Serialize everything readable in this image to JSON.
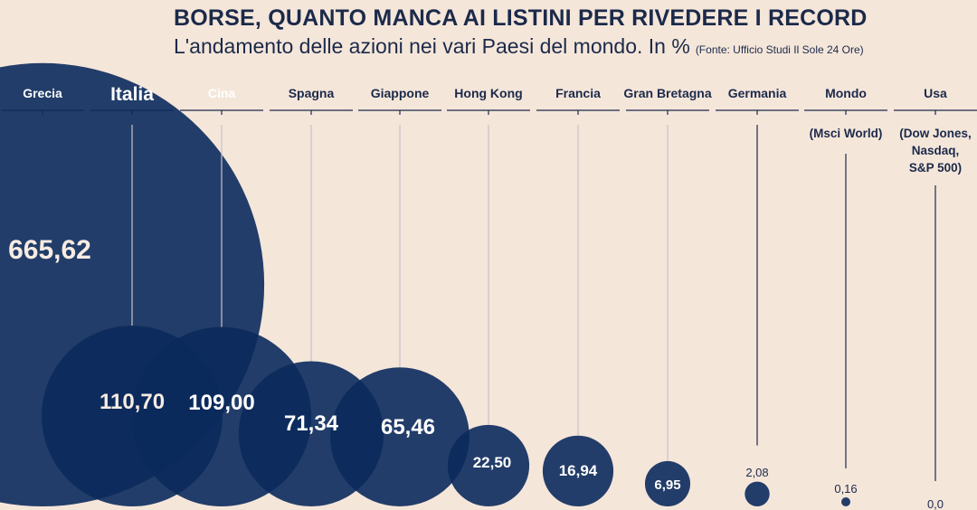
{
  "chart_data": {
    "type": "bubble",
    "title": "BORSE, QUANTO MANCA AI LISTINI PER RIVEDERE I RECORD",
    "subtitle": "L'andamento delle azioni nei vari Paesi del mondo. In %",
    "source": "(Fonte: Ufficio Studi Il Sole 24 Ore)",
    "categories": [
      "Grecia",
      "Italia",
      "Cina",
      "Spagna",
      "Giappone",
      "Hong Kong",
      "Francia",
      "Gran Bretagna",
      "Germania",
      "Mondo",
      "Usa"
    ],
    "sublabels": [
      "",
      "",
      "",
      "",
      "",
      "",
      "",
      "",
      "",
      "(Msci World)",
      "(Dow Jones,|Nasdaq,|S&P 500)"
    ],
    "values": [
      665.62,
      110.7,
      109.0,
      71.34,
      65.46,
      22.5,
      16.94,
      6.95,
      2.08,
      0.16,
      0.0
    ],
    "value_labels": [
      "665,62",
      "110,70",
      "109,00",
      "71,34",
      "65,46",
      "22,50",
      "16,94",
      "6,95",
      "2,08",
      "0,16",
      "0,0"
    ],
    "highlight": "Italia",
    "colors": {
      "bubble": "#0b2a5c",
      "background": "#f5e6da",
      "text": "#1b2a4a",
      "value_text": "#f5e6da"
    }
  }
}
